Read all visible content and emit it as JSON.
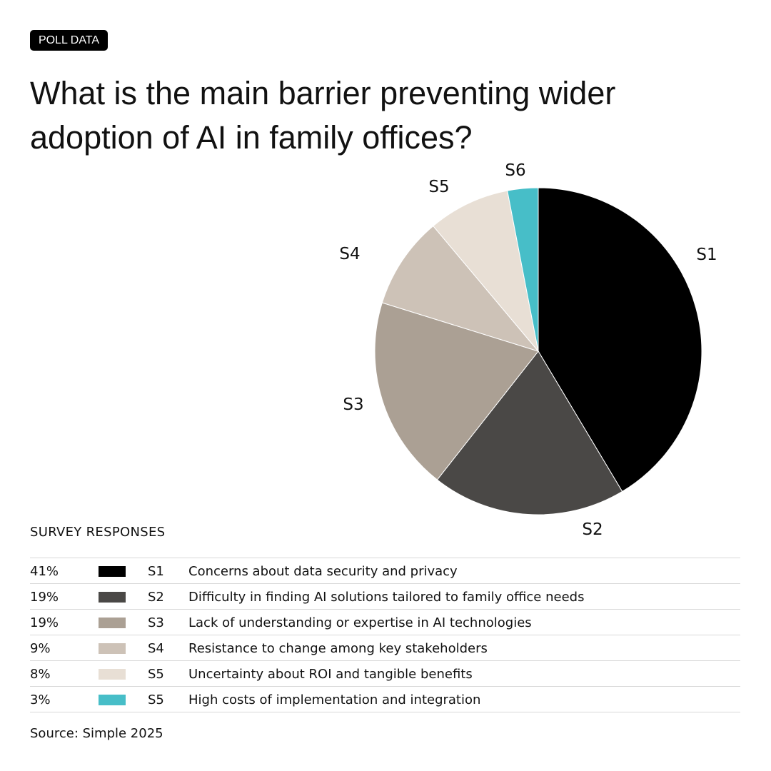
{
  "badge": "POLL DATA",
  "title": "What is the main barrier preventing wider adoption of AI in family offices?",
  "legend_heading": "SURVEY RESPONSES",
  "source": "Source: Simple 2025",
  "chart_data": {
    "type": "pie",
    "title": "What is the main barrier preventing wider adoption of AI in family offices?",
    "start": "top",
    "direction": "clockwise",
    "slices": [
      {
        "label": "S1",
        "value": 41,
        "pct": "41%",
        "color": "#000000",
        "legend_id": "S1",
        "description": "Concerns about data security and privacy"
      },
      {
        "label": "S2",
        "value": 19,
        "pct": "19%",
        "color": "#4a4846",
        "legend_id": "S2",
        "description": "Difficulty in finding AI solutions tailored to family office needs"
      },
      {
        "label": "S3",
        "value": 19,
        "pct": "19%",
        "color": "#aba094",
        "legend_id": "S3",
        "description": "Lack of understanding or expertise in AI technologies"
      },
      {
        "label": "S4",
        "value": 9,
        "pct": "9%",
        "color": "#cdc2b7",
        "legend_id": "S4",
        "description": "Resistance to change among key stakeholders"
      },
      {
        "label": "S5",
        "value": 8,
        "pct": "8%",
        "color": "#e8dfd5",
        "legend_id": "S5",
        "description": "Uncertainty about ROI and tangible benefits"
      },
      {
        "label": "S6",
        "value": 3,
        "pct": "3%",
        "color": "#47bec8",
        "legend_id": "S5",
        "description": "High costs of implementation and integration"
      }
    ]
  }
}
